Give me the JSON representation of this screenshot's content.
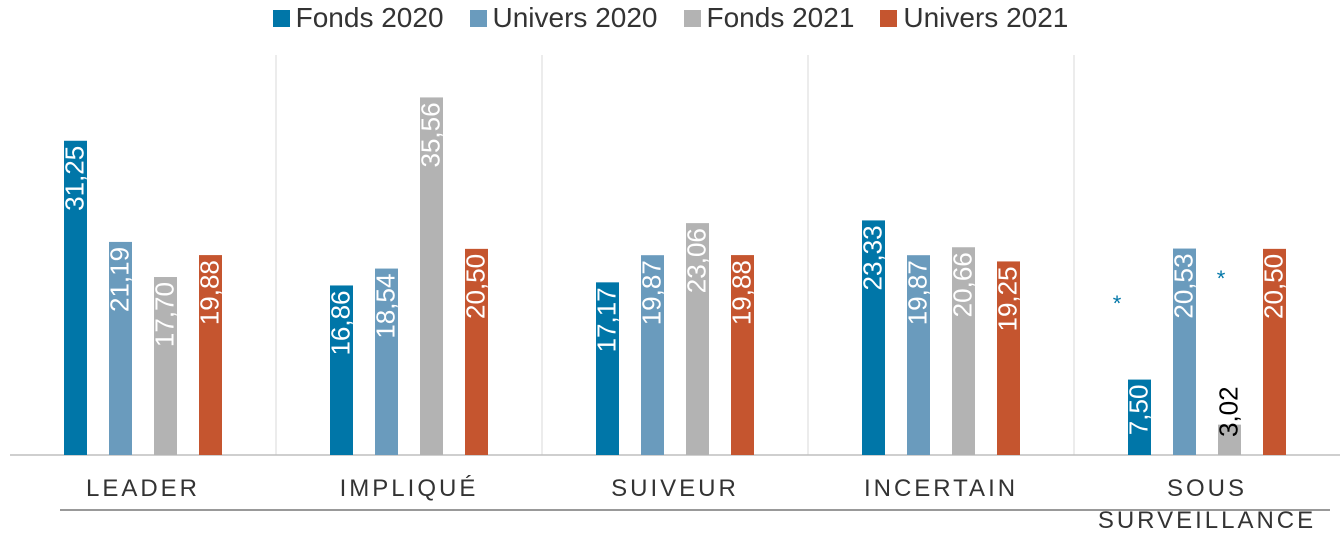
{
  "chart_data": {
    "type": "bar",
    "categories": [
      "LEADER",
      "IMPLIQUÉ",
      "SUIVEUR",
      "INCERTAIN",
      "SOUS SURVEILLANCE"
    ],
    "series": [
      {
        "name": "Fonds 2020",
        "color": "#0076a8",
        "values": [
          31.25,
          16.86,
          17.17,
          23.33,
          7.5
        ],
        "value_labels": [
          "31,25",
          "16,86",
          "17,17",
          "23,33",
          "7,50"
        ]
      },
      {
        "name": "Univers 2020",
        "color": "#6a9bbd",
        "values": [
          21.19,
          18.54,
          19.87,
          19.87,
          20.53
        ],
        "value_labels": [
          "21,19",
          "18,54",
          "19,87",
          "19,87",
          "20,53"
        ]
      },
      {
        "name": "Fonds 2021",
        "color": "#b3b3b3",
        "values": [
          17.7,
          35.56,
          23.06,
          20.66,
          3.02
        ],
        "value_labels": [
          "17,70",
          "35,56",
          "23,06",
          "20,66",
          "3,02"
        ]
      },
      {
        "name": "Univers 2021",
        "color": "#c5552f",
        "values": [
          19.88,
          20.5,
          19.88,
          19.25,
          20.5
        ],
        "value_labels": [
          "19,88",
          "20,50",
          "19,88",
          "19,25",
          "20,50"
        ]
      }
    ],
    "annotations": [
      "*",
      "*"
    ],
    "ylim": [
      0,
      36
    ],
    "legend": "top"
  }
}
